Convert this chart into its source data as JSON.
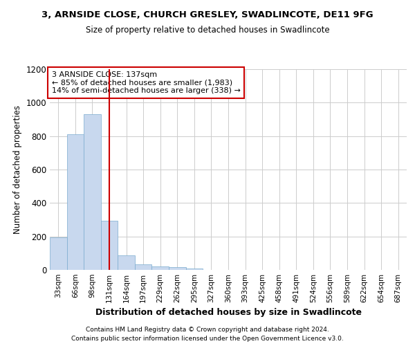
{
  "title_line1": "3, ARNSIDE CLOSE, CHURCH GRESLEY, SWADLINCOTE, DE11 9FG",
  "title_line2": "Size of property relative to detached houses in Swadlincote",
  "xlabel": "Distribution of detached houses by size in Swadlincote",
  "ylabel": "Number of detached properties",
  "bin_labels": [
    "33sqm",
    "66sqm",
    "98sqm",
    "131sqm",
    "164sqm",
    "197sqm",
    "229sqm",
    "262sqm",
    "295sqm",
    "327sqm",
    "360sqm",
    "393sqm",
    "425sqm",
    "458sqm",
    "491sqm",
    "524sqm",
    "556sqm",
    "589sqm",
    "622sqm",
    "654sqm",
    "687sqm"
  ],
  "bar_values": [
    195,
    810,
    930,
    295,
    87,
    35,
    20,
    15,
    10,
    0,
    0,
    0,
    0,
    0,
    0,
    0,
    0,
    0,
    0,
    0,
    0
  ],
  "bar_color": "#c8d8ee",
  "bar_edge_color": "#7aabcf",
  "grid_color": "#cccccc",
  "red_line_x": 3.0,
  "annotation_line1": "3 ARNSIDE CLOSE: 137sqm",
  "annotation_line2": "← 85% of detached houses are smaller (1,983)",
  "annotation_line3": "14% of semi-detached houses are larger (338) →",
  "annotation_box_color": "#ffffff",
  "annotation_border_color": "#cc0000",
  "vline_color": "#cc0000",
  "ylim": [
    0,
    1200
  ],
  "yticks": [
    0,
    200,
    400,
    600,
    800,
    1000,
    1200
  ],
  "footer_line1": "Contains HM Land Registry data © Crown copyright and database right 2024.",
  "footer_line2": "Contains public sector information licensed under the Open Government Licence v3.0.",
  "background_color": "#ffffff",
  "plot_bg_color": "#ffffff"
}
